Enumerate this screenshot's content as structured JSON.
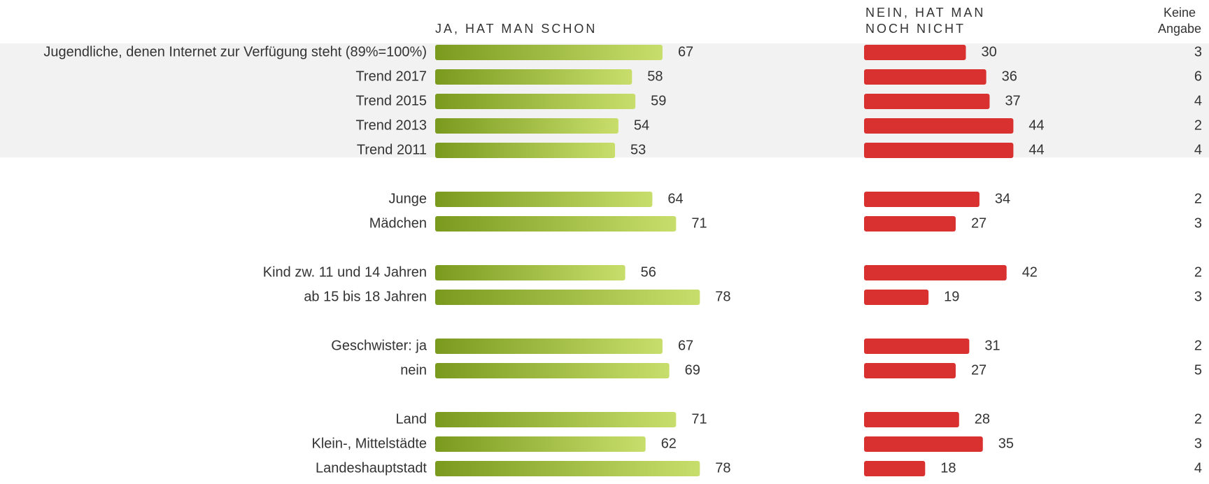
{
  "chart_data": {
    "type": "bar",
    "orientation": "horizontal",
    "categories": [
      "Jugendliche, denen Internet zur Verfügung steht (89%=100%)",
      "Trend 2017",
      "Trend 2015",
      "Trend 2013",
      "Trend 2011",
      "Junge",
      "Mädchen",
      "Kind zw. 11 und 14 Jahren",
      "ab 15 bis 18 Jahren",
      "Geschwister: ja",
      "nein",
      "Land",
      "Klein-, Mittelstädte",
      "Landeshauptstadt"
    ],
    "series": [
      {
        "name": "JA, HAT MAN SCHON",
        "color": "#7a9a1e",
        "values": [
          67,
          58,
          59,
          54,
          53,
          64,
          71,
          56,
          78,
          67,
          69,
          71,
          62,
          78
        ]
      },
      {
        "name": "NEIN, HAT MAN NOCH NICHT",
        "color": "#d93030",
        "values": [
          30,
          36,
          37,
          44,
          44,
          34,
          27,
          42,
          19,
          31,
          27,
          28,
          35,
          18
        ]
      },
      {
        "name": "Keine Angabe",
        "values": [
          3,
          6,
          4,
          2,
          4,
          2,
          3,
          2,
          3,
          2,
          5,
          2,
          3,
          4
        ]
      }
    ]
  }
}
